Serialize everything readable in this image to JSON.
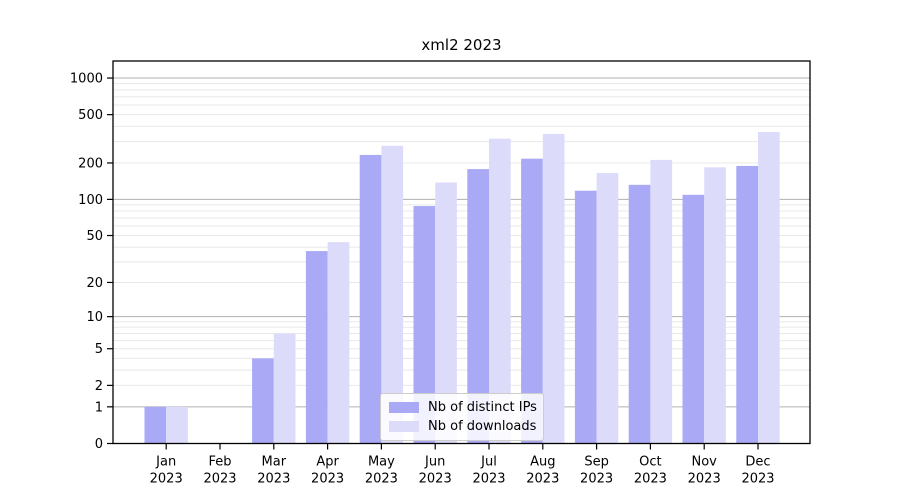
{
  "chart_data": {
    "type": "bar",
    "title": "xml2 2023",
    "categories": [
      "Jan 2023",
      "Feb 2023",
      "Mar 2023",
      "Apr 2023",
      "May 2023",
      "Jun 2023",
      "Jul 2023",
      "Aug 2023",
      "Sep 2023",
      "Oct 2023",
      "Nov 2023",
      "Dec 2023"
    ],
    "series": [
      {
        "name": "Nb of distinct IPs",
        "color": "#a9a9f6",
        "values": [
          1,
          0,
          4,
          37,
          233,
          88,
          178,
          217,
          118,
          132,
          109,
          189
        ]
      },
      {
        "name": "Nb of downloads",
        "color": "#dcdcfa",
        "values": [
          1,
          0,
          7,
          44,
          277,
          138,
          317,
          347,
          165,
          212,
          184,
          360
        ]
      }
    ],
    "xlabel": "",
    "ylabel": "",
    "y_scale": "log10(value+1)",
    "y_ticks": [
      0,
      1,
      2,
      5,
      10,
      20,
      50,
      100,
      200,
      500,
      1000
    ],
    "y_major_gridlines": [
      1,
      10,
      100,
      1000
    ],
    "ylim": [
      0,
      1380
    ],
    "grid": true,
    "legend_position": "inside bottom-center-left"
  },
  "colors": {
    "major_gridline": "#b0b0b0",
    "minor_gridline": "#e8e8e8",
    "axis": "#000000"
  }
}
